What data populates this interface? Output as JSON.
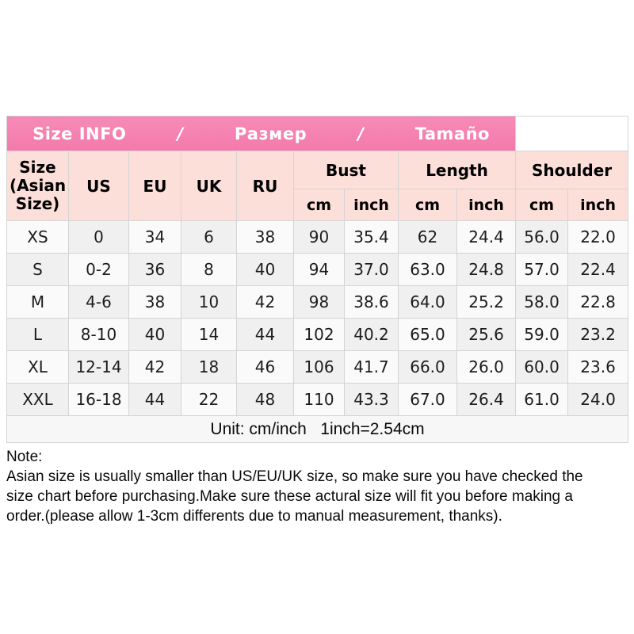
{
  "table": {
    "band": {
      "segments": [
        "Size INFO",
        "/",
        "Размер",
        "/",
        "Tamaño"
      ]
    },
    "headers": {
      "size_label": "Size\n(Asian\nSize)",
      "region_cols": [
        "US",
        "EU",
        "UK",
        "RU"
      ],
      "measure_groups": [
        "Bust",
        "Length",
        "Shoulder"
      ],
      "sub_units": [
        "cm",
        "inch",
        "cm",
        "inch",
        "cm",
        "inch"
      ]
    },
    "rows": [
      {
        "size": "XS",
        "values": [
          "0",
          "34",
          "6",
          "38",
          "90",
          "35.4",
          "62",
          "24.4",
          "56.0",
          "22.0"
        ]
      },
      {
        "size": "S",
        "values": [
          "0-2",
          "36",
          "8",
          "40",
          "94",
          "37.0",
          "63.0",
          "24.8",
          "57.0",
          "22.4"
        ]
      },
      {
        "size": "M",
        "values": [
          "4-6",
          "38",
          "10",
          "42",
          "98",
          "38.6",
          "64.0",
          "25.2",
          "58.0",
          "22.8"
        ]
      },
      {
        "size": "L",
        "values": [
          "8-10",
          "40",
          "14",
          "44",
          "102",
          "40.2",
          "65.0",
          "25.6",
          "59.0",
          "23.2"
        ]
      },
      {
        "size": "XL",
        "values": [
          "12-14",
          "42",
          "18",
          "46",
          "106",
          "41.7",
          "66.0",
          "26.0",
          "60.0",
          "23.6"
        ]
      },
      {
        "size": "XXL",
        "values": [
          "16-18",
          "44",
          "22",
          "48",
          "110",
          "43.3",
          "67.0",
          "26.4",
          "61.0",
          "24.0"
        ]
      }
    ],
    "unit_note": "Unit: cm/inch   1inch=2.54cm"
  },
  "note": {
    "title": "Note:",
    "lines": [
      "Asian size is usually smaller than US/EU/UK size, so make sure you have checked the",
      "size chart before purchasing.Make sure these actural size will fit you before making a",
      "order.(please allow 1-3cm differents due to manual measurement, thanks)."
    ]
  },
  "colors": {
    "band_pink": "#f47fae",
    "header_pink": "#fcdfd9",
    "grid_line": "#d4d4d4"
  }
}
